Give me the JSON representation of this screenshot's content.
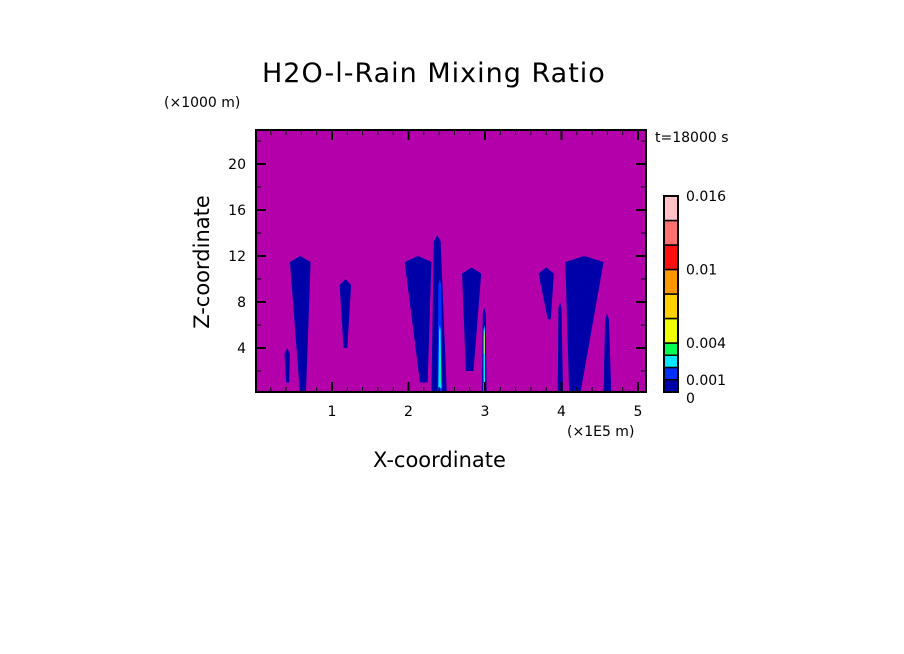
{
  "chart_data": {
    "type": "heatmap",
    "title": "H2O-l-Rain Mixing Ratio",
    "xlabel": "X-coordinate",
    "ylabel": "Z-coordinate",
    "x_unit": "(×1E5 m)",
    "y_unit": "(×1000 m)",
    "annotation": "t=18000 s",
    "xlim": [
      0,
      5.1
    ],
    "ylim": [
      0.2,
      23
    ],
    "x_ticks": [
      1,
      2,
      3,
      4,
      5
    ],
    "y_ticks": [
      4,
      8,
      12,
      16,
      20
    ],
    "background_value": 0,
    "background_color": "#b400aa",
    "colorbar": {
      "levels": [
        0,
        0.001,
        0.002,
        0.003,
        0.004,
        0.006,
        0.008,
        0.01,
        0.012,
        0.014,
        0.016
      ],
      "colors": [
        "#0000a8",
        "#0030ff",
        "#00e8ff",
        "#00ff50",
        "#f0ff00",
        "#ffd000",
        "#ff9800",
        "#ff1010",
        "#ff7070",
        "#ffc0c8"
      ],
      "labels": [
        "0",
        "0.001",
        "0.004",
        "0.01",
        "0.016"
      ]
    },
    "regions": [
      {
        "x_bottom": [
          0.58,
          0.66
        ],
        "x_top": [
          0.45,
          0.72
        ],
        "z": [
          0.2,
          12
        ],
        "value": 0.0005
      },
      {
        "x_bottom": [
          0.4,
          0.44
        ],
        "x_top": [
          0.38,
          0.45
        ],
        "z": [
          1,
          4
        ],
        "value": 0.0005
      },
      {
        "x_bottom": [
          1.15,
          1.2
        ],
        "x_top": [
          1.1,
          1.25
        ],
        "z": [
          4,
          10
        ],
        "value": 0.0005
      },
      {
        "x_bottom": [
          2.15,
          2.25
        ],
        "x_top": [
          1.95,
          2.3
        ],
        "z": [
          1,
          12
        ],
        "value": 0.0005
      },
      {
        "x_bottom": [
          2.3,
          2.5
        ],
        "x_top": [
          2.33,
          2.42
        ],
        "z": [
          0.2,
          13.8
        ],
        "value": 0.0005
      },
      {
        "x_bottom": [
          2.38,
          2.44
        ],
        "x_top": [
          2.39,
          2.43
        ],
        "z": [
          0.2,
          10
        ],
        "value": 0.0015
      },
      {
        "x_bottom": [
          2.39,
          2.43
        ],
        "x_top": [
          2.4,
          2.42
        ],
        "z": [
          0.5,
          6
        ],
        "value": 0.0025
      },
      {
        "x_bottom": [
          2.4,
          2.42
        ],
        "x_top": [
          2.405,
          2.415
        ],
        "z": [
          1,
          4.5
        ],
        "value": 0.0035
      },
      {
        "x_bottom": [
          2.75,
          2.85
        ],
        "x_top": [
          2.7,
          2.95
        ],
        "z": [
          2,
          11
        ],
        "value": 0.0005
      },
      {
        "x_bottom": [
          2.96,
          3.02
        ],
        "x_top": [
          2.97,
          3.01
        ],
        "z": [
          0.2,
          7.5
        ],
        "value": 0.0005
      },
      {
        "x_bottom": [
          2.98,
          3.0
        ],
        "x_top": [
          2.98,
          3.0
        ],
        "z": [
          0.2,
          6
        ],
        "value": 0.0025
      },
      {
        "x_bottom": [
          2.985,
          2.995
        ],
        "x_top": [
          2.985,
          2.995
        ],
        "z": [
          3.5,
          5.5
        ],
        "value": 0.005
      },
      {
        "x_bottom": [
          3.82,
          3.86
        ],
        "x_top": [
          3.7,
          3.9
        ],
        "z": [
          6.5,
          11
        ],
        "value": 0.0005
      },
      {
        "x_bottom": [
          3.95,
          4.02
        ],
        "x_top": [
          3.96,
          4.0
        ],
        "z": [
          0.2,
          8
        ],
        "value": 0.0005
      },
      {
        "x_bottom": [
          4.1,
          4.25
        ],
        "x_top": [
          4.05,
          4.55
        ],
        "z": [
          0.2,
          12
        ],
        "value": 0.0005
      },
      {
        "x_bottom": [
          4.55,
          4.65
        ],
        "x_top": [
          4.57,
          4.62
        ],
        "z": [
          0.2,
          7
        ],
        "value": 0.0005
      }
    ]
  }
}
